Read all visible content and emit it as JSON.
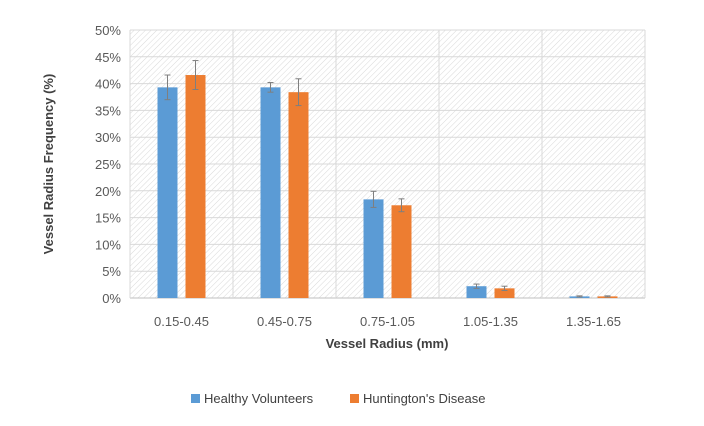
{
  "chart_data": {
    "type": "bar",
    "title": "",
    "xlabel": "Vessel Radius (mm)",
    "ylabel": "Vessel Radius Frequency (%)",
    "ylim": [
      0,
      50
    ],
    "y_ticks": [
      0,
      5,
      10,
      15,
      20,
      25,
      30,
      35,
      40,
      45,
      50
    ],
    "y_tick_suffix": "%",
    "categories": [
      "0.15-0.45",
      "0.45-0.75",
      "0.75-1.05",
      "1.05-1.35",
      "1.35-1.65"
    ],
    "series": [
      {
        "name": "Healthy Volunteers",
        "color": "#5b9bd5",
        "values": [
          39.3,
          39.3,
          18.4,
          2.2,
          0.3
        ],
        "errors": [
          2.3,
          0.9,
          1.5,
          0.4,
          0.1
        ]
      },
      {
        "name": "Huntington's Disease",
        "color": "#ed7d31",
        "values": [
          41.6,
          38.4,
          17.3,
          1.8,
          0.3
        ],
        "errors": [
          2.7,
          2.5,
          1.2,
          0.4,
          0.1
        ]
      }
    ],
    "grid": true,
    "legend_position": "bottom"
  }
}
